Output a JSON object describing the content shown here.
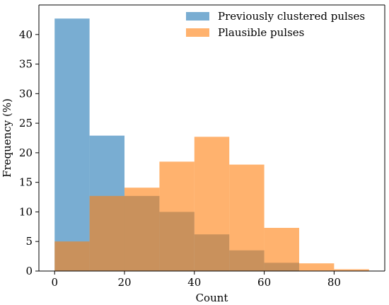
{
  "chart_data": {
    "type": "bar",
    "title": "",
    "xlabel": "Count",
    "ylabel": "Frequency (%)",
    "xlim": [
      -4.5,
      94.5
    ],
    "ylim": [
      0,
      45
    ],
    "x_ticks": [
      0,
      20,
      40,
      60,
      80
    ],
    "y_ticks": [
      0,
      5,
      10,
      15,
      20,
      25,
      30,
      35,
      40
    ],
    "bin_edges": [
      0,
      10,
      20,
      30,
      40,
      50,
      60,
      70,
      80,
      90
    ],
    "grid": false,
    "legend_position": "top-right",
    "overlap_color": "#b57d52",
    "series": [
      {
        "name": "Previously clustered pulses",
        "color": "#1f77b4",
        "opacity": 0.6,
        "values": [
          42.7,
          22.9,
          12.7,
          10.0,
          6.2,
          3.5,
          1.4,
          0.0,
          0.0
        ]
      },
      {
        "name": "Plausible pulses",
        "color": "#ff7f0e",
        "opacity": 0.6,
        "values": [
          5.0,
          12.7,
          14.1,
          18.5,
          22.7,
          18.0,
          7.3,
          1.3,
          0.3
        ]
      }
    ]
  }
}
